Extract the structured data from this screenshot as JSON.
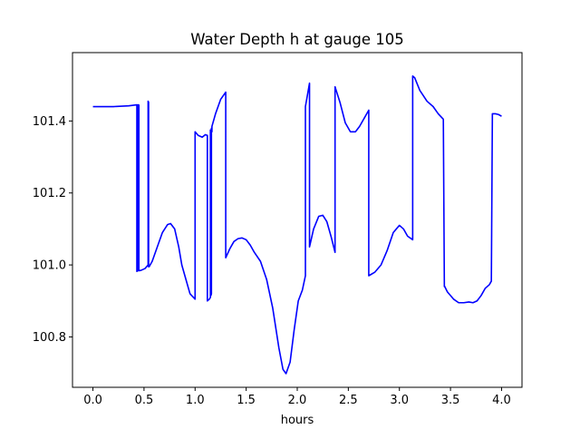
{
  "chart_data": {
    "type": "line",
    "title": "Water Depth h at gauge 105",
    "xlabel": "hours",
    "ylabel": "",
    "xlim": [
      -0.2,
      4.2
    ],
    "ylim": [
      100.66,
      101.59
    ],
    "xticks": [
      0.0,
      0.5,
      1.0,
      1.5,
      2.0,
      2.5,
      3.0,
      3.5,
      4.0
    ],
    "xtick_labels": [
      "0.0",
      "0.5",
      "1.0",
      "1.5",
      "2.0",
      "2.5",
      "3.0",
      "3.5",
      "4.0"
    ],
    "yticks": [
      100.8,
      101.0,
      101.2,
      101.4
    ],
    "ytick_labels": [
      "100.8",
      "101.0",
      "101.2",
      "101.4"
    ],
    "grid": false,
    "line_color": "#0000ff",
    "series": [
      {
        "x": [
          0.0,
          0.2,
          0.35,
          0.43,
          0.43,
          0.44,
          0.44,
          0.45,
          0.45,
          0.47,
          0.51,
          0.54,
          0.54,
          0.545,
          0.545,
          0.55,
          0.58,
          0.63,
          0.68,
          0.73,
          0.76,
          0.8,
          0.84,
          0.87,
          0.91,
          0.95,
          1.0,
          1.0,
          1.03,
          1.07,
          1.1,
          1.12,
          1.12,
          1.14,
          1.15,
          1.15,
          1.155,
          1.155,
          1.16,
          1.16,
          1.165,
          1.165,
          1.2,
          1.25,
          1.3,
          1.3,
          1.34,
          1.38,
          1.42,
          1.46,
          1.5,
          1.54,
          1.58,
          1.64,
          1.7,
          1.76,
          1.82,
          1.86,
          1.89,
          1.93,
          1.97,
          2.01,
          2.05,
          2.08,
          2.08,
          2.12,
          2.12,
          2.16,
          2.21,
          2.25,
          2.29,
          2.33,
          2.37,
          2.37,
          2.42,
          2.47,
          2.52,
          2.57,
          2.61,
          2.66,
          2.7,
          2.7,
          2.76,
          2.82,
          2.88,
          2.94,
          3.0,
          3.04,
          3.08,
          3.13,
          3.13,
          3.15,
          3.2,
          3.27,
          3.33,
          3.38,
          3.43,
          3.44,
          3.44,
          3.47,
          3.53,
          3.58,
          3.63,
          3.68,
          3.72,
          3.76,
          3.8,
          3.84,
          3.88,
          3.9,
          3.91,
          3.91,
          3.94,
          3.97,
          4.0
        ],
        "y": [
          101.44,
          101.44,
          101.442,
          101.445,
          100.982,
          100.984,
          101.445,
          101.444,
          100.984,
          100.985,
          100.99,
          101.0,
          101.455,
          101.452,
          100.995,
          100.995,
          101.01,
          101.05,
          101.09,
          101.112,
          101.115,
          101.1,
          101.05,
          101.0,
          100.96,
          100.92,
          100.905,
          101.37,
          101.36,
          101.355,
          101.362,
          101.36,
          100.9,
          100.905,
          100.91,
          101.375,
          101.37,
          100.915,
          100.92,
          101.38,
          101.37,
          101.385,
          101.42,
          101.46,
          101.48,
          101.02,
          101.045,
          101.065,
          101.073,
          101.075,
          101.07,
          101.055,
          101.035,
          101.01,
          100.96,
          100.88,
          100.77,
          100.71,
          100.698,
          100.73,
          100.82,
          100.9,
          100.93,
          100.97,
          101.44,
          101.505,
          101.05,
          101.1,
          101.135,
          101.138,
          101.12,
          101.08,
          101.035,
          101.495,
          101.45,
          101.395,
          101.37,
          101.37,
          101.385,
          101.41,
          101.43,
          100.97,
          100.98,
          101.0,
          101.04,
          101.09,
          101.11,
          101.1,
          101.08,
          101.07,
          101.525,
          101.52,
          101.485,
          101.455,
          101.44,
          101.42,
          101.405,
          100.94,
          100.942,
          100.925,
          100.905,
          100.895,
          100.895,
          100.897,
          100.895,
          100.9,
          100.915,
          100.935,
          100.945,
          100.955,
          101.415,
          101.42,
          101.42,
          101.418,
          101.413
        ]
      }
    ]
  }
}
